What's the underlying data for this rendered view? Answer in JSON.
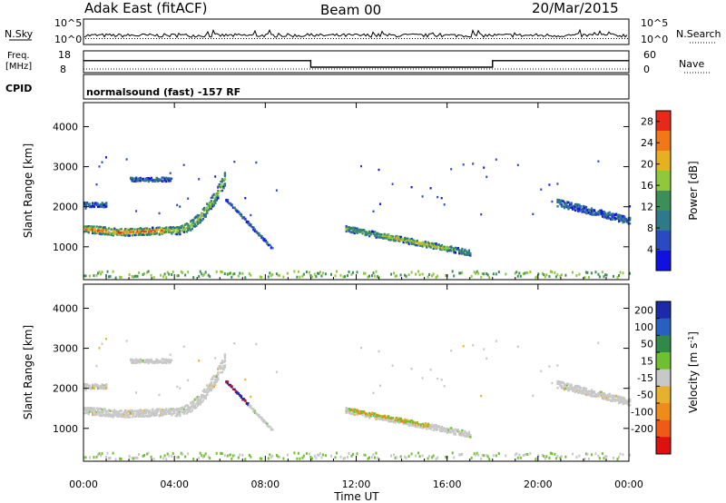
{
  "header": {
    "station": "Adak East (fitACF)",
    "beam": "Beam 00",
    "date": "20/Mar/2015"
  },
  "strip_labels": {
    "nsky": "N.Sky",
    "nsky_top": "10^5",
    "nsky_bottom": "10^0",
    "nsearch": "N.Search",
    "nsearch_top": "10^5",
    "nsearch_bottom": "10^0",
    "freq_label1": "Freq.",
    "freq_label2": "[MHz]",
    "freq_top": "18",
    "freq_bottom": "8",
    "nave": "Nave",
    "nave_top": "60",
    "nave_bottom": "0",
    "cpid": "CPID",
    "cpid_text": "normalsound (fast) -157 RF"
  },
  "chart_data": [
    {
      "type": "heatmap",
      "name": "power",
      "xlabel": "Time UT",
      "ylabel": "Slant Range [km]",
      "x_ticks": [
        "00:00",
        "04:00",
        "08:00",
        "12:00",
        "16:00",
        "20:00",
        "00:00"
      ],
      "x_tick_hours": [
        0,
        4,
        8,
        12,
        16,
        20,
        24
      ],
      "y_ticks": [
        1000,
        2000,
        3000,
        4000
      ],
      "ylim": [
        180,
        4600
      ],
      "xlim_hours": [
        0,
        24
      ],
      "colorbar_label": "Power [dB]",
      "colorbar_ticks": [
        4,
        8,
        12,
        16,
        20,
        24,
        28
      ],
      "colorbar_range": [
        0,
        30
      ],
      "colors": [
        "#1010e0",
        "#2a4bbf",
        "#2f7a8a",
        "#3c8f58",
        "#8fc83a",
        "#e6b020",
        "#f07818",
        "#e82818"
      ],
      "echo_regions": [
        {
          "t0": 0.0,
          "t1": 6.2,
          "range": "main-band",
          "level": "strong"
        },
        {
          "t0": 6.2,
          "t1": 8.3,
          "range": "descending",
          "level": "weak"
        },
        {
          "t0": 11.5,
          "t1": 17.0,
          "range": "mid-band",
          "level": "medium"
        },
        {
          "t0": 20.8,
          "t1": 24.0,
          "range": "streaks",
          "level": "weak"
        }
      ]
    },
    {
      "type": "heatmap",
      "name": "velocity",
      "xlabel": "Time UT",
      "ylabel": "Slant Range [km]",
      "x_ticks": [
        "00:00",
        "04:00",
        "08:00",
        "12:00",
        "16:00",
        "20:00",
        "00:00"
      ],
      "x_tick_hours": [
        0,
        4,
        8,
        12,
        16,
        20,
        24
      ],
      "y_ticks": [
        1000,
        2000,
        3000,
        4000
      ],
      "ylim": [
        180,
        4600
      ],
      "xlim_hours": [
        0,
        24
      ],
      "colorbar_label": "Velocity [m s^-1]",
      "colorbar_ticks": [
        200,
        100,
        50,
        15,
        -15,
        -50,
        -100,
        -200
      ],
      "colors": [
        "#1a2aa8",
        "#2860c0",
        "#2f8a4a",
        "#6ec030",
        "#c8c8c8",
        "#e8b030",
        "#f08a18",
        "#f05a18",
        "#e01010"
      ]
    }
  ],
  "nsky_series": {
    "type": "line",
    "level": 0.35
  },
  "freq_series": {
    "type": "line",
    "segments": [
      {
        "t0": 0.0,
        "t1": 10.0,
        "mhz": 13.5
      },
      {
        "t0": 10.0,
        "t1": 18.0,
        "mhz": 10.5
      },
      {
        "t0": 18.0,
        "t1": 24.0,
        "mhz": 13.5
      }
    ],
    "ylim": [
      8,
      18
    ]
  },
  "nave_series": {
    "type": "line",
    "value": 10,
    "ylim": [
      0,
      60
    ]
  }
}
